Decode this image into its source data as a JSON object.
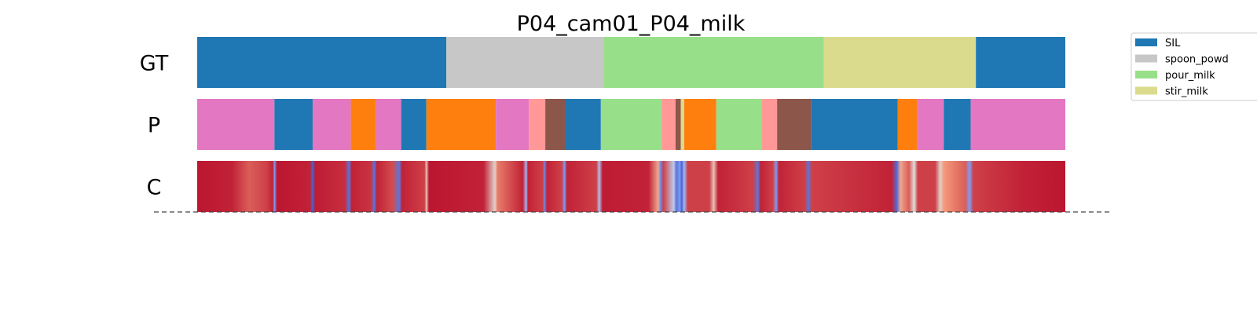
{
  "chart_data": {
    "type": "segmentation",
    "title": "P04_cam01_P04_milk",
    "time_domain": [
      0,
      1
    ],
    "rows": [
      {
        "label": "GT",
        "segments": [
          {
            "start": 0.0,
            "end": 0.287,
            "action": "SIL"
          },
          {
            "start": 0.287,
            "end": 0.468,
            "action": "spoon_powder"
          },
          {
            "start": 0.468,
            "end": 0.722,
            "action": "pour_milk"
          },
          {
            "start": 0.722,
            "end": 0.897,
            "action": "stir_milk"
          },
          {
            "start": 0.897,
            "end": 1.0,
            "action": "SIL"
          }
        ]
      },
      {
        "label": "P",
        "segments": [
          {
            "start": 0.0,
            "end": 0.089,
            "action": "pink"
          },
          {
            "start": 0.089,
            "end": 0.133,
            "action": "SIL"
          },
          {
            "start": 0.133,
            "end": 0.177,
            "action": "pink"
          },
          {
            "start": 0.177,
            "end": 0.206,
            "action": "orange"
          },
          {
            "start": 0.206,
            "end": 0.235,
            "action": "pink"
          },
          {
            "start": 0.235,
            "end": 0.264,
            "action": "SIL"
          },
          {
            "start": 0.264,
            "end": 0.344,
            "action": "orange"
          },
          {
            "start": 0.344,
            "end": 0.382,
            "action": "pink"
          },
          {
            "start": 0.382,
            "end": 0.401,
            "action": "salmon"
          },
          {
            "start": 0.401,
            "end": 0.424,
            "action": "brown"
          },
          {
            "start": 0.424,
            "end": 0.465,
            "action": "SIL"
          },
          {
            "start": 0.465,
            "end": 0.535,
            "action": "pour_milk"
          },
          {
            "start": 0.535,
            "end": 0.551,
            "action": "salmon"
          },
          {
            "start": 0.551,
            "end": 0.557,
            "action": "brown"
          },
          {
            "start": 0.557,
            "end": 0.561,
            "action": "stir_milk"
          },
          {
            "start": 0.561,
            "end": 0.598,
            "action": "orange"
          },
          {
            "start": 0.598,
            "end": 0.65,
            "action": "pour_milk"
          },
          {
            "start": 0.65,
            "end": 0.668,
            "action": "salmon"
          },
          {
            "start": 0.668,
            "end": 0.707,
            "action": "brown"
          },
          {
            "start": 0.707,
            "end": 0.807,
            "action": "SIL"
          },
          {
            "start": 0.807,
            "end": 0.829,
            "action": "orange"
          },
          {
            "start": 0.829,
            "end": 0.86,
            "action": "pink"
          },
          {
            "start": 0.86,
            "end": 0.891,
            "action": "SIL"
          },
          {
            "start": 0.891,
            "end": 1.0,
            "action": "pink"
          }
        ]
      },
      {
        "label": "C",
        "type": "heatmap",
        "colormap": "coolwarm",
        "values": [
          [
            0.0,
            0.97
          ],
          [
            0.04,
            0.95
          ],
          [
            0.06,
            0.85
          ],
          [
            0.08,
            0.9
          ],
          [
            0.087,
            0.95
          ],
          [
            0.089,
            0.2
          ],
          [
            0.092,
            0.97
          ],
          [
            0.13,
            0.95
          ],
          [
            0.133,
            0.05
          ],
          [
            0.136,
            0.96
          ],
          [
            0.17,
            0.93
          ],
          [
            0.175,
            0.1
          ],
          [
            0.178,
            0.95
          ],
          [
            0.2,
            0.92
          ],
          [
            0.204,
            0.1
          ],
          [
            0.207,
            0.95
          ],
          [
            0.225,
            0.88
          ],
          [
            0.233,
            0.1
          ],
          [
            0.236,
            0.95
          ],
          [
            0.262,
            0.9
          ],
          [
            0.264,
            0.6
          ],
          [
            0.267,
            0.97
          ],
          [
            0.33,
            0.95
          ],
          [
            0.343,
            0.55
          ],
          [
            0.346,
            0.8
          ],
          [
            0.375,
            0.95
          ],
          [
            0.379,
            0.3
          ],
          [
            0.381,
            0.95
          ],
          [
            0.398,
            0.9
          ],
          [
            0.4,
            0.15
          ],
          [
            0.403,
            0.95
          ],
          [
            0.42,
            0.9
          ],
          [
            0.423,
            0.2
          ],
          [
            0.426,
            0.95
          ],
          [
            0.46,
            0.9
          ],
          [
            0.463,
            0.35
          ],
          [
            0.467,
            0.96
          ],
          [
            0.52,
            0.95
          ],
          [
            0.531,
            0.7
          ],
          [
            0.534,
            0.15
          ],
          [
            0.537,
            0.9
          ],
          [
            0.549,
            0.4
          ],
          [
            0.552,
            0.1
          ],
          [
            0.556,
            0.2
          ],
          [
            0.558,
            0.05
          ],
          [
            0.561,
            0.3
          ],
          [
            0.565,
            0.9
          ],
          [
            0.59,
            0.9
          ],
          [
            0.595,
            0.6
          ],
          [
            0.6,
            0.95
          ],
          [
            0.64,
            0.9
          ],
          [
            0.646,
            0.1
          ],
          [
            0.649,
            0.95
          ],
          [
            0.663,
            0.9
          ],
          [
            0.667,
            0.2
          ],
          [
            0.67,
            0.95
          ],
          [
            0.7,
            0.9
          ],
          [
            0.704,
            0.1
          ],
          [
            0.708,
            0.9
          ],
          [
            0.8,
            0.95
          ],
          [
            0.806,
            0.08
          ],
          [
            0.81,
            0.7
          ],
          [
            0.82,
            0.85
          ],
          [
            0.826,
            0.5
          ],
          [
            0.83,
            0.9
          ],
          [
            0.85,
            0.9
          ],
          [
            0.856,
            0.55
          ],
          [
            0.86,
            0.75
          ],
          [
            0.885,
            0.85
          ],
          [
            0.89,
            0.2
          ],
          [
            0.894,
            0.9
          ],
          [
            0.95,
            0.95
          ],
          [
            1.0,
            0.97
          ]
        ]
      }
    ],
    "legend": {
      "placement": "top-right outside",
      "entries": [
        {
          "label": "SIL",
          "color": "#1f77b4"
        },
        {
          "label": "spoon_powd",
          "color": "#c7c7c7"
        },
        {
          "label": "pour_milk",
          "color": "#98df8a"
        },
        {
          "label": "stir_milk",
          "color": "#dbdb8d"
        }
      ]
    },
    "colors": {
      "SIL": "#1f77b4",
      "spoon_powder": "#c7c7c7",
      "pour_milk": "#98df8a",
      "stir_milk": "#dbdb8d",
      "pink": "#e377c2",
      "orange": "#ff7f0e",
      "salmon": "#ff9896",
      "brown": "#8c564b"
    },
    "baseline": {
      "style": "dashed",
      "color": "#444444"
    }
  }
}
